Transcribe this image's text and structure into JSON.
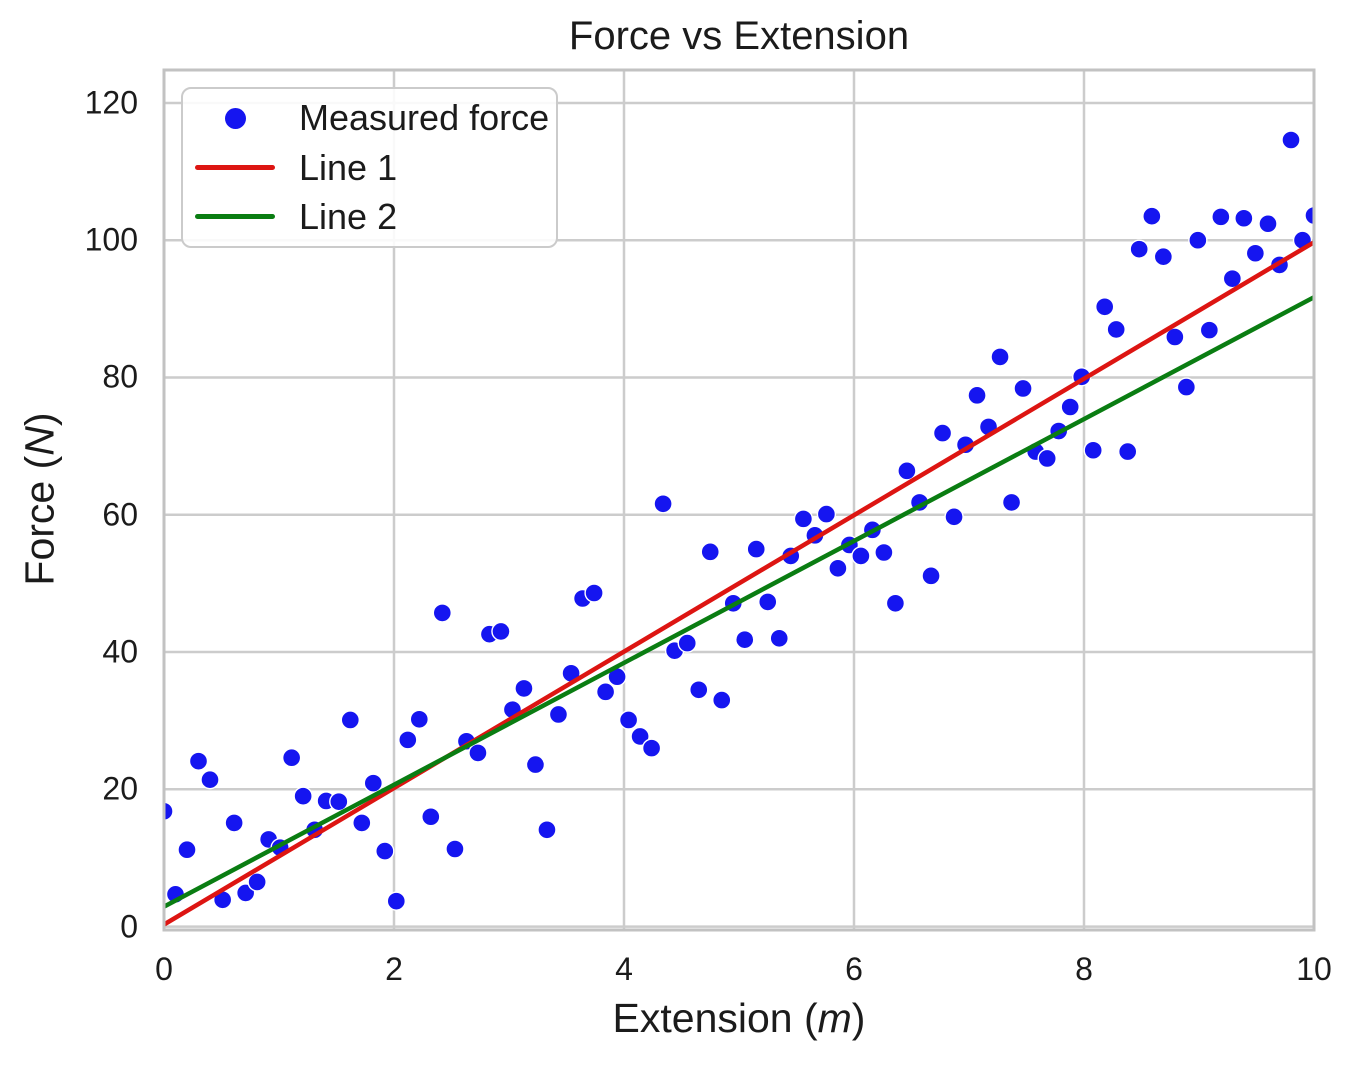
{
  "title": "Force vs Extension",
  "labels": {
    "xlabel_pre": "Extension (",
    "xlabel_var": "m",
    "xlabel_post": ")",
    "ylabel_pre": "Force (",
    "ylabel_var": "N",
    "ylabel_post": ")"
  },
  "legend": {
    "items": [
      {
        "label": "Measured force",
        "type": "dot",
        "color": "#1515f0"
      },
      {
        "label": "Line 1",
        "type": "line",
        "color": "#dd1512"
      },
      {
        "label": "Line 2",
        "type": "line",
        "color": "#0a7d12"
      }
    ]
  },
  "style": {
    "background": "#ffffff",
    "grid_color": "#cccccc",
    "spine_color": "#c2c2c2",
    "text_color": "#1b1b1b",
    "point_color": "#1515f0",
    "line1_color": "#dd1512",
    "line2_color": "#0a7d12"
  },
  "chart_data": {
    "type": "scatter",
    "title": "Force vs Extension",
    "xlabel": "Extension (m)",
    "ylabel": "Force (N)",
    "xlim": [
      0,
      10
    ],
    "ylim": [
      -0.5,
      124.8
    ],
    "xticks": [
      0,
      2,
      4,
      6,
      8,
      10
    ],
    "yticks": [
      0,
      20,
      40,
      60,
      80,
      100,
      120
    ],
    "grid": true,
    "legend_position": "upper left",
    "series": [
      {
        "name": "Measured force",
        "kind": "scatter",
        "color": "#1515f0",
        "marker_radius": 9,
        "x": [
          0.0,
          0.1,
          0.2,
          0.3,
          0.4,
          0.51,
          0.61,
          0.71,
          0.81,
          0.91,
          1.01,
          1.11,
          1.21,
          1.31,
          1.41,
          1.52,
          1.62,
          1.72,
          1.82,
          1.92,
          2.02,
          2.12,
          2.22,
          2.32,
          2.42,
          2.53,
          2.63,
          2.73,
          2.83,
          2.93,
          3.03,
          3.13,
          3.23,
          3.33,
          3.43,
          3.54,
          3.64,
          3.74,
          3.84,
          3.94,
          4.04,
          4.14,
          4.24,
          4.34,
          4.44,
          4.55,
          4.65,
          4.75,
          4.85,
          4.95,
          5.05,
          5.15,
          5.25,
          5.35,
          5.45,
          5.56,
          5.66,
          5.76,
          5.86,
          5.96,
          6.06,
          6.16,
          6.26,
          6.36,
          6.46,
          6.57,
          6.67,
          6.77,
          6.87,
          6.97,
          7.07,
          7.17,
          7.27,
          7.37,
          7.47,
          7.58,
          7.68,
          7.78,
          7.88,
          7.98,
          8.08,
          8.18,
          8.28,
          8.38,
          8.48,
          8.59,
          8.69,
          8.79,
          8.89,
          8.99,
          9.09,
          9.19,
          9.29,
          9.39,
          9.49,
          9.6,
          9.7,
          9.8,
          9.9,
          10.0
        ],
        "y": [
          16.8,
          4.7,
          11.2,
          24.1,
          21.4,
          3.9,
          15.1,
          4.9,
          6.5,
          12.7,
          11.5,
          24.6,
          19.0,
          14.1,
          18.3,
          18.2,
          30.1,
          15.1,
          20.9,
          11.0,
          3.7,
          27.2,
          30.2,
          16.0,
          45.7,
          11.3,
          27.0,
          25.3,
          42.6,
          43.0,
          31.6,
          34.7,
          23.6,
          14.1,
          30.9,
          36.9,
          47.8,
          48.6,
          34.2,
          36.4,
          30.1,
          27.7,
          26.0,
          61.6,
          40.2,
          41.3,
          34.5,
          54.6,
          33.0,
          47.1,
          41.8,
          55.0,
          47.3,
          42.0,
          54.0,
          59.4,
          57.0,
          60.1,
          52.2,
          55.6,
          54.0,
          57.8,
          54.5,
          47.1,
          66.4,
          61.8,
          51.1,
          71.9,
          59.7,
          70.2,
          77.4,
          72.8,
          83.0,
          61.8,
          78.4,
          69.2,
          68.2,
          72.2,
          75.7,
          80.1,
          69.4,
          90.3,
          87.0,
          69.2,
          98.7,
          103.5,
          97.6,
          85.9,
          78.6,
          100.0,
          86.9,
          103.4,
          94.4,
          103.2,
          98.1,
          102.4,
          96.4,
          114.6,
          100.0,
          103.6
        ]
      },
      {
        "name": "Line 1",
        "kind": "line",
        "color": "#dd1512",
        "x": [
          0,
          10
        ],
        "y": [
          0.3,
          99.7
        ]
      },
      {
        "name": "Line 2",
        "kind": "line",
        "color": "#0a7d12",
        "x": [
          0,
          10
        ],
        "y": [
          2.9,
          91.7
        ]
      }
    ]
  }
}
